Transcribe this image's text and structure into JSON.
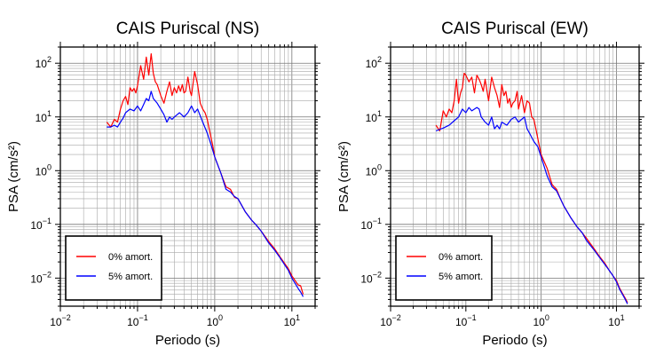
{
  "chart_data": [
    {
      "type": "line",
      "title": "CAIS Puriscal (NS)",
      "xlabel": "Periodo (s)",
      "ylabel": "PSA (cm/s²)",
      "xscale": "log",
      "yscale": "log",
      "xlim": [
        0.01,
        20
      ],
      "ylim": [
        0.003,
        200
      ],
      "grid": true,
      "legend_position": "bottom-left",
      "x_ticks": [
        "10^-2",
        "10^-1",
        "10^0",
        "10^1"
      ],
      "y_ticks": [
        "10^-2",
        "10^-1",
        "10^0",
        "10^1",
        "10^2"
      ],
      "series": [
        {
          "name": "0% amort.",
          "color": "#ff0000",
          "x": [
            0.04,
            0.045,
            0.05,
            0.055,
            0.06,
            0.065,
            0.07,
            0.075,
            0.08,
            0.085,
            0.09,
            0.095,
            0.1,
            0.11,
            0.12,
            0.13,
            0.14,
            0.15,
            0.16,
            0.17,
            0.18,
            0.2,
            0.22,
            0.24,
            0.26,
            0.28,
            0.3,
            0.32,
            0.34,
            0.36,
            0.38,
            0.4,
            0.42,
            0.45,
            0.48,
            0.5,
            0.55,
            0.6,
            0.65,
            0.7,
            0.75,
            0.8,
            0.85,
            0.9,
            0.95,
            1.0,
            1.2,
            1.4,
            1.6,
            1.8,
            2.0,
            2.5,
            3.0,
            3.5,
            4.0,
            5.0,
            6.0,
            7.0,
            8.0,
            9.0,
            10.0,
            11.0,
            12.0,
            13.0,
            14.0
          ],
          "y": [
            8,
            6.5,
            9,
            8,
            14,
            20,
            24,
            17,
            35,
            30,
            34,
            28,
            38,
            90,
            50,
            130,
            60,
            150,
            65,
            45,
            40,
            25,
            18,
            30,
            45,
            25,
            35,
            28,
            38,
            30,
            40,
            28,
            30,
            55,
            30,
            25,
            70,
            40,
            18,
            14,
            12,
            9,
            6,
            4,
            2.8,
            1.8,
            0.9,
            0.5,
            0.45,
            0.32,
            0.3,
            0.17,
            0.12,
            0.095,
            0.075,
            0.048,
            0.035,
            0.025,
            0.019,
            0.015,
            0.011,
            0.009,
            0.0075,
            0.0072,
            0.005
          ]
        },
        {
          "name": "5% amort.",
          "color": "#0000ff",
          "x": [
            0.04,
            0.045,
            0.05,
            0.055,
            0.06,
            0.065,
            0.07,
            0.08,
            0.09,
            0.1,
            0.11,
            0.12,
            0.13,
            0.14,
            0.15,
            0.16,
            0.18,
            0.2,
            0.22,
            0.24,
            0.26,
            0.28,
            0.3,
            0.35,
            0.4,
            0.45,
            0.5,
            0.55,
            0.6,
            0.7,
            0.8,
            0.9,
            1.0,
            1.2,
            1.4,
            1.6,
            1.8,
            2.0,
            2.5,
            3.0,
            3.5,
            4.0,
            5.0,
            6.0,
            7.0,
            8.0,
            9.0,
            10.0,
            11.0,
            12.0,
            13.0,
            14.0
          ],
          "y": [
            6.5,
            6.5,
            7,
            6.5,
            8,
            9.5,
            12,
            14,
            13,
            16,
            13,
            17,
            22,
            20,
            30,
            22,
            18,
            14,
            11,
            8,
            10,
            9,
            10,
            12,
            10,
            12,
            16,
            12,
            14,
            8,
            5,
            3,
            1.8,
            0.9,
            0.45,
            0.4,
            0.33,
            0.3,
            0.17,
            0.12,
            0.095,
            0.075,
            0.045,
            0.033,
            0.024,
            0.018,
            0.014,
            0.01,
            0.008,
            0.0065,
            0.0055,
            0.0045
          ]
        }
      ]
    },
    {
      "type": "line",
      "title": "CAIS Puriscal (EW)",
      "xlabel": "Periodo (s)",
      "ylabel": "PSA (cm/s²)",
      "xscale": "log",
      "yscale": "log",
      "xlim": [
        0.01,
        20
      ],
      "ylim": [
        0.003,
        200
      ],
      "grid": true,
      "legend_position": "bottom-left",
      "x_ticks": [
        "10^-2",
        "10^-1",
        "10^0",
        "10^1"
      ],
      "y_ticks": [
        "10^-2",
        "10^-1",
        "10^0",
        "10^1",
        "10^2"
      ],
      "series": [
        {
          "name": "0% amort.",
          "color": "#ff0000",
          "x": [
            0.04,
            0.045,
            0.05,
            0.055,
            0.06,
            0.065,
            0.07,
            0.075,
            0.08,
            0.085,
            0.09,
            0.095,
            0.1,
            0.11,
            0.12,
            0.13,
            0.14,
            0.15,
            0.16,
            0.17,
            0.18,
            0.2,
            0.22,
            0.24,
            0.26,
            0.28,
            0.3,
            0.32,
            0.34,
            0.36,
            0.38,
            0.4,
            0.42,
            0.45,
            0.48,
            0.5,
            0.55,
            0.6,
            0.65,
            0.7,
            0.75,
            0.8,
            0.85,
            0.9,
            1.0,
            1.2,
            1.4,
            1.6,
            1.8,
            2.0,
            2.5,
            3.0,
            3.5,
            4.0,
            5.0,
            6.0,
            7.0,
            8.0,
            9.0,
            10.0,
            11.0,
            12.0,
            13.0,
            14.0
          ],
          "y": [
            7,
            5.5,
            13,
            10,
            14,
            12,
            20,
            50,
            18,
            28,
            35,
            65,
            60,
            45,
            55,
            28,
            60,
            50,
            40,
            30,
            50,
            20,
            55,
            35,
            25,
            15,
            40,
            25,
            30,
            18,
            22,
            15,
            18,
            20,
            30,
            14,
            25,
            12,
            20,
            18,
            10,
            9,
            6,
            4,
            2,
            1.1,
            0.55,
            0.45,
            0.3,
            0.22,
            0.13,
            0.09,
            0.07,
            0.055,
            0.036,
            0.025,
            0.019,
            0.014,
            0.011,
            0.009,
            0.0065,
            0.0052,
            0.0043,
            0.0035
          ]
        },
        {
          "name": "5% amort.",
          "color": "#0000ff",
          "x": [
            0.04,
            0.05,
            0.06,
            0.07,
            0.08,
            0.09,
            0.1,
            0.11,
            0.12,
            0.13,
            0.14,
            0.15,
            0.16,
            0.18,
            0.2,
            0.22,
            0.24,
            0.26,
            0.28,
            0.3,
            0.35,
            0.4,
            0.45,
            0.5,
            0.55,
            0.6,
            0.65,
            0.7,
            0.8,
            0.9,
            1.0,
            1.2,
            1.4,
            1.6,
            1.8,
            2.0,
            2.5,
            3.0,
            3.5,
            4.0,
            5.0,
            6.0,
            7.0,
            8.0,
            9.0,
            10.0,
            11.0,
            12.0,
            13.0,
            14.0
          ],
          "y": [
            5.5,
            6.2,
            7,
            8.5,
            10,
            14,
            12,
            15,
            13,
            14,
            15,
            14,
            10,
            8,
            7,
            10,
            6,
            7,
            6,
            8,
            7,
            9,
            10,
            8,
            9,
            10,
            6,
            5,
            3.5,
            2.8,
            1.8,
            0.8,
            0.5,
            0.42,
            0.3,
            0.22,
            0.13,
            0.09,
            0.07,
            0.05,
            0.034,
            0.024,
            0.018,
            0.014,
            0.011,
            0.0085,
            0.0062,
            0.005,
            0.0041,
            0.0033
          ]
        }
      ]
    }
  ]
}
